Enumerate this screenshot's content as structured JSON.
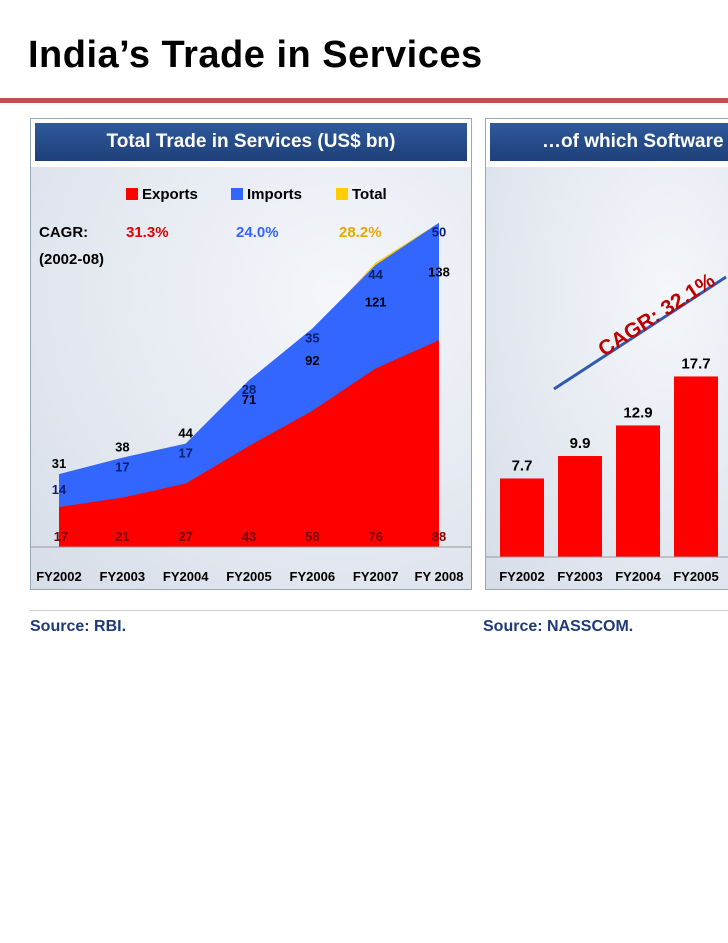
{
  "title": "India’s Trade in Services",
  "colors": {
    "exports": "#ff0000",
    "imports": "#3366ff",
    "total": "#ffcc00",
    "software": "#ff0000",
    "header": "#2e5a9c",
    "source": "#1f3a7a"
  },
  "left_panel": {
    "header": "Total Trade in Services (US$ bn)",
    "source": "Source: RBI.",
    "cagr_label": "CAGR:",
    "cagr_period": "(2002-08)"
  },
  "right_panel": {
    "header": "…of which Software",
    "source": "Source: NASSCOM."
  },
  "chart_data": [
    {
      "type": "area",
      "title": "Total Trade in Services (US$ bn)",
      "categories": [
        "FY2002",
        "FY2003",
        "FY2004",
        "FY2005",
        "FY2006",
        "FY2007",
        "FY 2008"
      ],
      "series": [
        {
          "name": "Exports",
          "values": [
            17,
            21,
            27,
            43,
            58,
            76,
            88
          ],
          "cagr": "31.3%"
        },
        {
          "name": "Imports",
          "values": [
            14,
            17,
            17,
            28,
            35,
            44,
            50
          ],
          "cagr": "24.0%"
        },
        {
          "name": "Total",
          "values": [
            31,
            38,
            44,
            71,
            92,
            121,
            138
          ],
          "cagr": "28.2%"
        }
      ],
      "legend_position": "top",
      "grid": false
    },
    {
      "type": "bar",
      "title": "…of which Software",
      "categories": [
        "FY2002",
        "FY2003",
        "FY2004",
        "FY2005"
      ],
      "values": [
        7.7,
        9.9,
        12.9,
        17.7
      ],
      "annotation": "CAGR: 32.1%",
      "grid": false
    }
  ]
}
